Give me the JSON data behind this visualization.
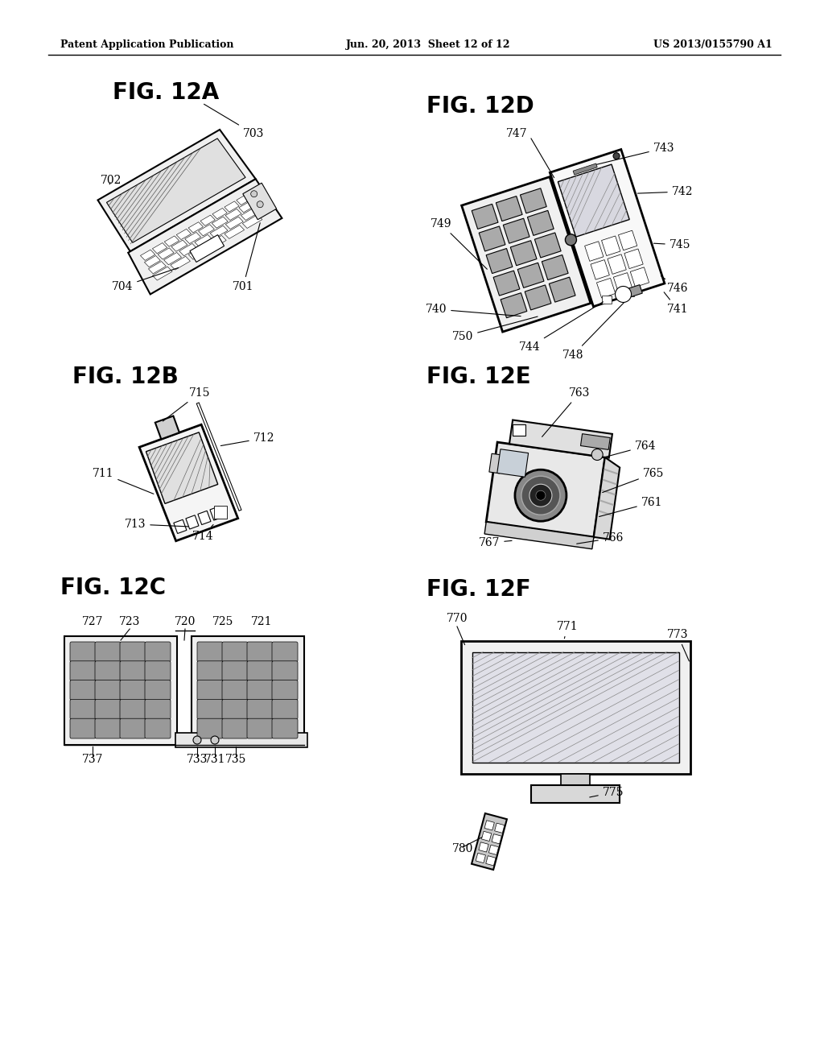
{
  "header_left": "Patent Application Publication",
  "header_center": "Jun. 20, 2013  Sheet 12 of 12",
  "header_right": "US 2013/0155790 A1",
  "bg_color": "#ffffff"
}
